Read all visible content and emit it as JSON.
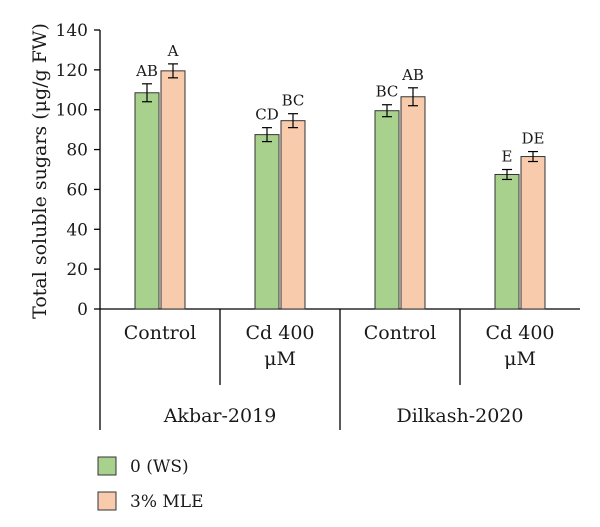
{
  "chart_data": {
    "type": "bar",
    "ylabel": "Total soluble sugars (μg/g FW)",
    "ylim": [
      0,
      140
    ],
    "yticks": [
      0,
      20,
      40,
      60,
      80,
      100,
      120,
      140
    ],
    "groups": [
      {
        "name": "Akbar-2019",
        "categories": [
          {
            "lines": [
              "Control"
            ],
            "values": [
              108.5,
              119.5
            ],
            "errors": [
              4.5,
              3.5
            ],
            "letters": [
              "AB",
              "A"
            ]
          },
          {
            "lines": [
              "Cd 400",
              "μM"
            ],
            "values": [
              87.5,
              94.5
            ],
            "errors": [
              3.5,
              3.5
            ],
            "letters": [
              "CD",
              "BC"
            ]
          }
        ]
      },
      {
        "name": "Dilkash-2020",
        "categories": [
          {
            "lines": [
              "Control"
            ],
            "values": [
              99.5,
              106.5
            ],
            "errors": [
              3.0,
              4.5
            ],
            "letters": [
              "BC",
              "AB"
            ]
          },
          {
            "lines": [
              "Cd 400",
              "μM"
            ],
            "values": [
              67.5,
              76.5
            ],
            "errors": [
              2.5,
              2.5
            ],
            "letters": [
              "E",
              "DE"
            ]
          }
        ]
      }
    ],
    "series": [
      {
        "name": "0 (WS)",
        "color": "#a9d18e"
      },
      {
        "name": "3% MLE",
        "color": "#f8cbad"
      }
    ],
    "legend_position": "bottom-left",
    "grid": false
  }
}
